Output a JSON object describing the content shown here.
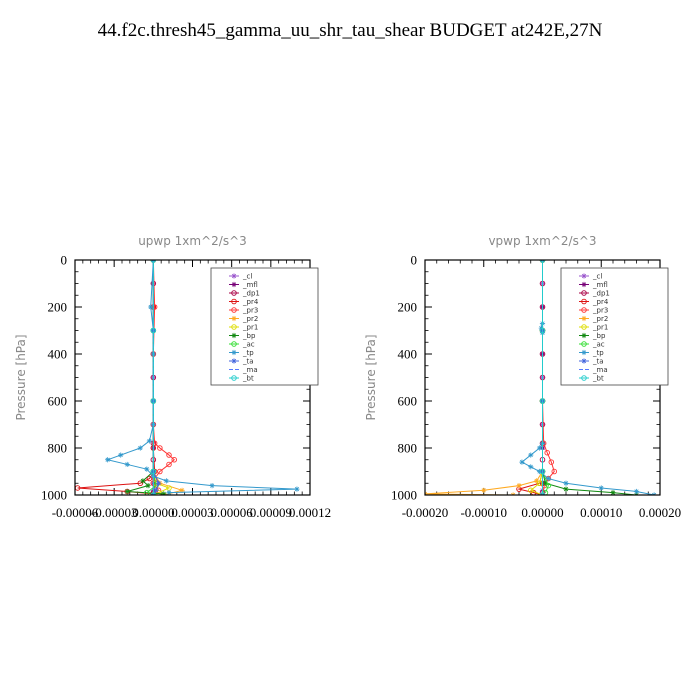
{
  "title": "44.f2c.thresh45_gamma_uu_shr_tau_shear  BUDGET at242E,27N",
  "chart_data": [
    {
      "type": "line",
      "title": "upwp   1xm^2/s^3",
      "ylabel": "Pressure [hPa]",
      "xlim": [
        -6e-05,
        0.00012
      ],
      "ylim": [
        1000,
        0
      ],
      "xticks": [
        -6e-05,
        -3e-05,
        0.0,
        3e-05,
        6e-05,
        9e-05,
        0.00012
      ],
      "xtick_labels": [
        "-0.00006",
        "-0.00003",
        "0.00000",
        "0.00003",
        "0.00006",
        "0.00009",
        "0.00012"
      ],
      "yticks": [
        0,
        200,
        400,
        600,
        800,
        1000
      ],
      "ytick_labels": [
        "0",
        "200",
        "400",
        "600",
        "800",
        "1000"
      ],
      "legend_position": "top-right",
      "series": [
        {
          "name": "_cl",
          "color": "#9955cc",
          "marker": "star",
          "dash": "",
          "y": [
            0,
            100,
            200,
            300,
            400,
            500,
            600,
            700,
            800,
            900,
            950,
            980,
            1000
          ],
          "values": [
            0,
            0,
            0,
            0,
            0,
            0,
            0,
            0,
            0,
            0,
            0,
            0,
            0
          ]
        },
        {
          "name": "_mfl",
          "color": "#770077",
          "marker": "star",
          "dash": "",
          "y": [
            0,
            200,
            400,
            600,
            800,
            900,
            950,
            1000
          ],
          "values": [
            0,
            0,
            0,
            0,
            0,
            0,
            1e-06,
            0
          ]
        },
        {
          "name": "_dp1",
          "color": "#aa0044",
          "marker": "circle",
          "dash": "",
          "y": [
            0,
            100,
            200,
            300,
            400,
            500,
            600,
            700,
            780,
            850,
            900,
            950,
            990
          ],
          "values": [
            0,
            0,
            0,
            0,
            0,
            0,
            0,
            0,
            0,
            0,
            0,
            0,
            0
          ]
        },
        {
          "name": "_pr4",
          "color": "#dd1111",
          "marker": "circle",
          "dash": "",
          "y": [
            0,
            200,
            400,
            600,
            800,
            900,
            930,
            950,
            970,
            985,
            995
          ],
          "values": [
            0,
            0,
            0,
            0,
            0,
            1e-06,
            -3e-06,
            -1e-05,
            -5.8e-05,
            -2e-05,
            0
          ]
        },
        {
          "name": "_pr3",
          "color": "#ff3333",
          "marker": "circle",
          "dash": "",
          "y": [
            0,
            200,
            400,
            600,
            700,
            780,
            800,
            830,
            850,
            870,
            900,
            930,
            950,
            980,
            1000
          ],
          "values": [
            0,
            1e-06,
            0,
            0,
            0,
            1e-06,
            5e-06,
            1.2e-05,
            1.6e-05,
            1.2e-05,
            5e-06,
            1e-06,
            0,
            4e-06,
            0
          ]
        },
        {
          "name": "_pr2",
          "color": "#ffaa22",
          "marker": "star",
          "dash": "",
          "y": [
            0,
            300,
            600,
            900,
            950,
            980,
            1000
          ],
          "values": [
            0,
            0,
            0,
            0,
            5e-06,
            2.2e-05,
            8e-06
          ]
        },
        {
          "name": "_pr1",
          "color": "#dddd00",
          "marker": "circle",
          "dash": "",
          "y": [
            0,
            300,
            600,
            900,
            950,
            970,
            990,
            1000
          ],
          "values": [
            0,
            0,
            0,
            0,
            2e-06,
            1.2e-05,
            4e-06,
            0
          ]
        },
        {
          "name": "_bp",
          "color": "#118811",
          "marker": "star",
          "dash": "",
          "y": [
            0,
            300,
            600,
            900,
            940,
            960,
            985,
            995
          ],
          "values": [
            0,
            0,
            0,
            0,
            -8e-06,
            -4e-06,
            -2e-05,
            8e-06
          ]
        },
        {
          "name": "_ac",
          "color": "#33dd33",
          "marker": "circle",
          "dash": "",
          "y": [
            0,
            300,
            600,
            900,
            960,
            990
          ],
          "values": [
            0,
            0,
            0,
            0,
            2e-06,
            -5e-06
          ]
        },
        {
          "name": "_tp",
          "color": "#3399cc",
          "marker": "star",
          "dash": "",
          "y": [
            0,
            200,
            300,
            400,
            600,
            700,
            770,
            800,
            830,
            850,
            870,
            890,
            920,
            940,
            960,
            975,
            990
          ],
          "values": [
            0,
            -2e-06,
            0,
            0,
            0,
            0,
            -3e-06,
            -1e-05,
            -2.5e-05,
            -3.5e-05,
            -2e-05,
            -5e-06,
            0,
            1e-05,
            4.5e-05,
            0.00011,
            1.2e-05
          ]
        },
        {
          "name": "_ta",
          "color": "#4466dd",
          "marker": "star",
          "dash": "",
          "y": [
            0,
            300,
            600,
            900,
            950,
            980,
            1000
          ],
          "values": [
            0,
            0,
            0,
            0,
            4e-06,
            2e-06,
            0
          ]
        },
        {
          "name": "_ma",
          "color": "#5577ff",
          "marker": "",
          "dash": "4,2",
          "y": [
            0,
            300,
            600,
            900,
            1000
          ],
          "values": [
            0,
            0,
            0,
            0,
            0
          ]
        },
        {
          "name": "_bt",
          "color": "#22cccc",
          "marker": "circle",
          "dash": "",
          "y": [
            0,
            300,
            600,
            900,
            1000
          ],
          "values": [
            0,
            0,
            0,
            0,
            0
          ]
        }
      ]
    },
    {
      "type": "line",
      "title": "vpwp   1xm^2/s^3",
      "ylabel": "Pressure [hPa]",
      "xlim": [
        -0.0002,
        0.0002
      ],
      "ylim": [
        1000,
        0
      ],
      "xticks": [
        -0.0002,
        -0.0001,
        0.0,
        0.0001,
        0.0002
      ],
      "xtick_labels": [
        "-0.00020",
        "-0.00010",
        "0.00000",
        "0.00010",
        "0.00020"
      ],
      "yticks": [
        0,
        200,
        400,
        600,
        800,
        1000
      ],
      "ytick_labels": [
        "0",
        "200",
        "400",
        "600",
        "800",
        "1000"
      ],
      "legend_position": "top-right",
      "series": [
        {
          "name": "_cl",
          "color": "#9955cc",
          "marker": "star",
          "dash": "",
          "y": [
            0,
            100,
            200,
            300,
            400,
            500,
            600,
            700,
            800,
            900,
            950,
            980,
            1000
          ],
          "values": [
            0,
            0,
            0,
            0,
            0,
            0,
            0,
            0,
            0,
            0,
            0,
            0,
            0
          ]
        },
        {
          "name": "_mfl",
          "color": "#770077",
          "marker": "star",
          "dash": "",
          "y": [
            0,
            200,
            400,
            600,
            800,
            900,
            950,
            1000
          ],
          "values": [
            0,
            0,
            0,
            0,
            0,
            0,
            0,
            0
          ]
        },
        {
          "name": "_dp1",
          "color": "#aa0044",
          "marker": "circle",
          "dash": "",
          "y": [
            0,
            100,
            200,
            300,
            400,
            500,
            600,
            700,
            780,
            850,
            900,
            950,
            990
          ],
          "values": [
            0,
            0,
            0,
            0,
            0,
            0,
            0,
            0,
            0,
            0,
            0,
            0,
            0
          ]
        },
        {
          "name": "_pr4",
          "color": "#dd1111",
          "marker": "circle",
          "dash": "",
          "y": [
            0,
            300,
            600,
            900,
            950,
            975,
            990,
            1000
          ],
          "values": [
            0,
            0,
            0,
            0,
            -5e-06,
            -4e-05,
            -1.5e-05,
            0
          ]
        },
        {
          "name": "_pr3",
          "color": "#ff3333",
          "marker": "circle",
          "dash": "",
          "y": [
            0,
            300,
            600,
            780,
            820,
            860,
            900,
            930,
            960,
            1000
          ],
          "values": [
            0,
            0,
            0,
            2e-06,
            8e-06,
            1.5e-05,
            2e-05,
            1e-05,
            3e-06,
            0
          ]
        },
        {
          "name": "_pr2",
          "color": "#ffaa22",
          "marker": "star",
          "dash": "",
          "y": [
            0,
            300,
            600,
            900,
            940,
            960,
            980,
            995,
            1000
          ],
          "values": [
            0,
            0,
            0,
            0,
            -1e-05,
            -4e-05,
            -0.0001,
            -0.0002,
            -5e-05
          ]
        },
        {
          "name": "_pr1",
          "color": "#dddd00",
          "marker": "circle",
          "dash": "",
          "y": [
            0,
            300,
            600,
            900,
            950,
            980,
            1000
          ],
          "values": [
            0,
            0,
            0,
            0,
            -5e-06,
            -2e-05,
            0
          ]
        },
        {
          "name": "_bp",
          "color": "#118811",
          "marker": "star",
          "dash": "",
          "y": [
            0,
            300,
            600,
            900,
            950,
            975,
            990,
            1000
          ],
          "values": [
            0,
            0,
            0,
            0,
            5e-06,
            4e-05,
            0.00012,
            0.00016
          ]
        },
        {
          "name": "_ac",
          "color": "#33dd33",
          "marker": "circle",
          "dash": "",
          "y": [
            0,
            300,
            600,
            900,
            960,
            990
          ],
          "values": [
            0,
            0,
            0,
            0,
            1e-05,
            5e-06
          ]
        },
        {
          "name": "_tp",
          "color": "#3399cc",
          "marker": "star",
          "dash": "",
          "y": [
            0,
            270,
            290,
            310,
            600,
            780,
            800,
            830,
            860,
            880,
            900,
            930,
            950,
            970,
            985,
            1000
          ],
          "values": [
            0,
            0,
            -2e-06,
            0,
            0,
            0,
            -5e-06,
            -2e-05,
            -3.5e-05,
            -2e-05,
            -5e-06,
            1e-05,
            4e-05,
            0.0001,
            0.00016,
            0.00019
          ]
        },
        {
          "name": "_ta",
          "color": "#4466dd",
          "marker": "star",
          "dash": "",
          "y": [
            0,
            300,
            600,
            900,
            1000
          ],
          "values": [
            0,
            0,
            0,
            0,
            0
          ]
        },
        {
          "name": "_ma",
          "color": "#5577ff",
          "marker": "",
          "dash": "4,2",
          "y": [
            0,
            300,
            600,
            900,
            1000
          ],
          "values": [
            0,
            0,
            0,
            0,
            0
          ]
        },
        {
          "name": "_bt",
          "color": "#22cccc",
          "marker": "circle",
          "dash": "",
          "y": [
            0,
            300,
            600,
            900,
            1000
          ],
          "values": [
            0,
            0,
            0,
            0,
            0
          ]
        }
      ]
    }
  ]
}
